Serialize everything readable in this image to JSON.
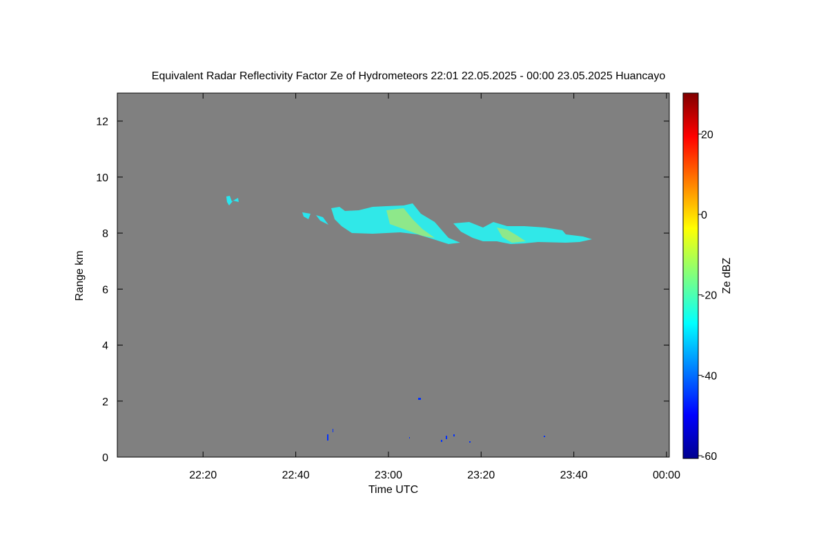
{
  "chart_data": {
    "type": "heatmap",
    "title": "Equivalent Radar Reflectivity Factor Ze of Hydrometeors   22:01 22.05.2025 - 00:00 23.05.2025 Huancayo",
    "xlabel": "Time UTC",
    "ylabel": "Range km",
    "xlim": [
      1.5,
      120.6
    ],
    "xticks": [
      {
        "value": 20,
        "label": "22:20"
      },
      {
        "value": 40,
        "label": "22:40"
      },
      {
        "value": 60,
        "label": "23:00"
      },
      {
        "value": 80,
        "label": "23:20"
      },
      {
        "value": 100,
        "label": "23:40"
      },
      {
        "value": 120,
        "label": "00:00"
      }
    ],
    "ylim": [
      0,
      13
    ],
    "yticks": [
      0,
      2,
      4,
      6,
      8,
      10,
      12
    ],
    "colorbar_label": "Ze dBZ",
    "zlim": [
      -60,
      30
    ],
    "zticks": [
      -60,
      -40,
      -20,
      0,
      20
    ],
    "background_color": "#808080"
  }
}
